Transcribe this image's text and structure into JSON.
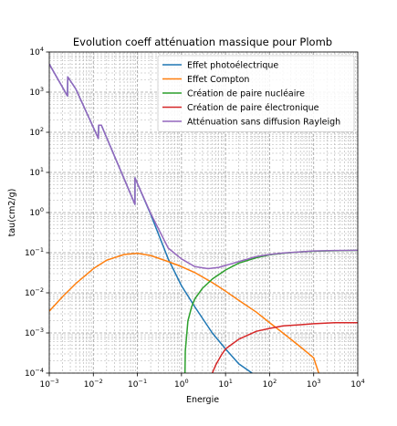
{
  "chart_data": {
    "type": "line",
    "title": "Evolution coeff atténuation massique pour Plomb",
    "xlabel": "Energie",
    "ylabel": "tau(cm2/g)",
    "xscale": "log",
    "yscale": "log",
    "xlim": [
      0.001,
      10000
    ],
    "ylim": [
      0.0001,
      10000
    ],
    "x_ticks": [
      {
        "base": "10",
        "exp": "−3"
      },
      {
        "base": "10",
        "exp": "−2"
      },
      {
        "base": "10",
        "exp": "−1"
      },
      {
        "base": "10",
        "exp": "0"
      },
      {
        "base": "10",
        "exp": "1"
      },
      {
        "base": "10",
        "exp": "2"
      },
      {
        "base": "10",
        "exp": "3"
      },
      {
        "base": "10",
        "exp": "4"
      }
    ],
    "y_ticks": [
      {
        "base": "10",
        "exp": "−4"
      },
      {
        "base": "10",
        "exp": "−3"
      },
      {
        "base": "10",
        "exp": "−2"
      },
      {
        "base": "10",
        "exp": "−1"
      },
      {
        "base": "10",
        "exp": "0"
      },
      {
        "base": "10",
        "exp": "1"
      },
      {
        "base": "10",
        "exp": "2"
      },
      {
        "base": "10",
        "exp": "3"
      },
      {
        "base": "10",
        "exp": "4"
      }
    ],
    "grid": true,
    "legend_position": "top-right",
    "series": [
      {
        "name": "Effet photoélectrique",
        "color": "#1f77b4",
        "points": [
          [
            0.001,
            5000
          ],
          [
            0.00259,
            800
          ],
          [
            0.00262,
            2400
          ],
          [
            0.004,
            1200
          ],
          [
            0.013,
            70
          ],
          [
            0.0132,
            150
          ],
          [
            0.0152,
            150
          ],
          [
            0.088,
            1.6
          ],
          [
            0.0881,
            7.3
          ],
          [
            0.2,
            0.9
          ],
          [
            0.5,
            0.07
          ],
          [
            1,
            0.015
          ],
          [
            2,
            0.0045
          ],
          [
            5,
            0.001
          ],
          [
            10,
            0.0004
          ],
          [
            20,
            0.00017
          ],
          [
            40,
            0.0001
          ]
        ]
      },
      {
        "name": "Effet Compton",
        "color": "#ff7f0e",
        "points": [
          [
            0.001,
            0.0035
          ],
          [
            0.002,
            0.008
          ],
          [
            0.004,
            0.017
          ],
          [
            0.01,
            0.04
          ],
          [
            0.02,
            0.065
          ],
          [
            0.05,
            0.09
          ],
          [
            0.1,
            0.097
          ],
          [
            0.2,
            0.085
          ],
          [
            0.5,
            0.06
          ],
          [
            1,
            0.045
          ],
          [
            2,
            0.032
          ],
          [
            5,
            0.018
          ],
          [
            10,
            0.011
          ],
          [
            20,
            0.0065
          ],
          [
            50,
            0.0033
          ],
          [
            100,
            0.0018
          ],
          [
            200,
            0.001
          ],
          [
            500,
            0.00045
          ],
          [
            1000,
            0.00024
          ],
          [
            1300,
            0.0001
          ]
        ]
      },
      {
        "name": "Création de paire nucléaire",
        "color": "#2ca02c",
        "points": [
          [
            1.2,
            0.0001
          ],
          [
            1.22,
            0.00035
          ],
          [
            1.4,
            0.002
          ],
          [
            1.7,
            0.0045
          ],
          [
            2,
            0.007
          ],
          [
            3,
            0.013
          ],
          [
            5,
            0.022
          ],
          [
            10,
            0.037
          ],
          [
            20,
            0.055
          ],
          [
            50,
            0.075
          ],
          [
            100,
            0.088
          ],
          [
            200,
            0.097
          ],
          [
            500,
            0.105
          ],
          [
            1000,
            0.109
          ],
          [
            3000,
            0.112
          ],
          [
            10000,
            0.114
          ]
        ]
      },
      {
        "name": "Création de paire électronique",
        "color": "#d62728",
        "points": [
          [
            5,
            0.0001
          ],
          [
            6,
            0.00016
          ],
          [
            8,
            0.00028
          ],
          [
            10,
            0.0004
          ],
          [
            20,
            0.0007
          ],
          [
            50,
            0.0011
          ],
          [
            100,
            0.0013
          ],
          [
            200,
            0.0015
          ],
          [
            500,
            0.0016
          ],
          [
            1000,
            0.0017
          ],
          [
            3000,
            0.0018
          ],
          [
            10000,
            0.0018
          ]
        ]
      },
      {
        "name": "Atténuation sans diffusion Rayleigh",
        "color": "#9467bd",
        "points": [
          [
            0.001,
            5000
          ],
          [
            0.00259,
            800
          ],
          [
            0.00262,
            2400
          ],
          [
            0.004,
            1200
          ],
          [
            0.013,
            70
          ],
          [
            0.0132,
            150
          ],
          [
            0.0152,
            150
          ],
          [
            0.088,
            1.6
          ],
          [
            0.0881,
            7.3
          ],
          [
            0.2,
            0.95
          ],
          [
            0.5,
            0.13
          ],
          [
            1,
            0.07
          ],
          [
            2,
            0.045
          ],
          [
            4,
            0.04
          ],
          [
            7,
            0.043
          ],
          [
            10,
            0.048
          ],
          [
            20,
            0.06
          ],
          [
            50,
            0.08
          ],
          [
            100,
            0.09
          ],
          [
            200,
            0.098
          ],
          [
            500,
            0.105
          ],
          [
            1000,
            0.11
          ],
          [
            3000,
            0.113
          ],
          [
            10000,
            0.115
          ]
        ]
      }
    ]
  }
}
